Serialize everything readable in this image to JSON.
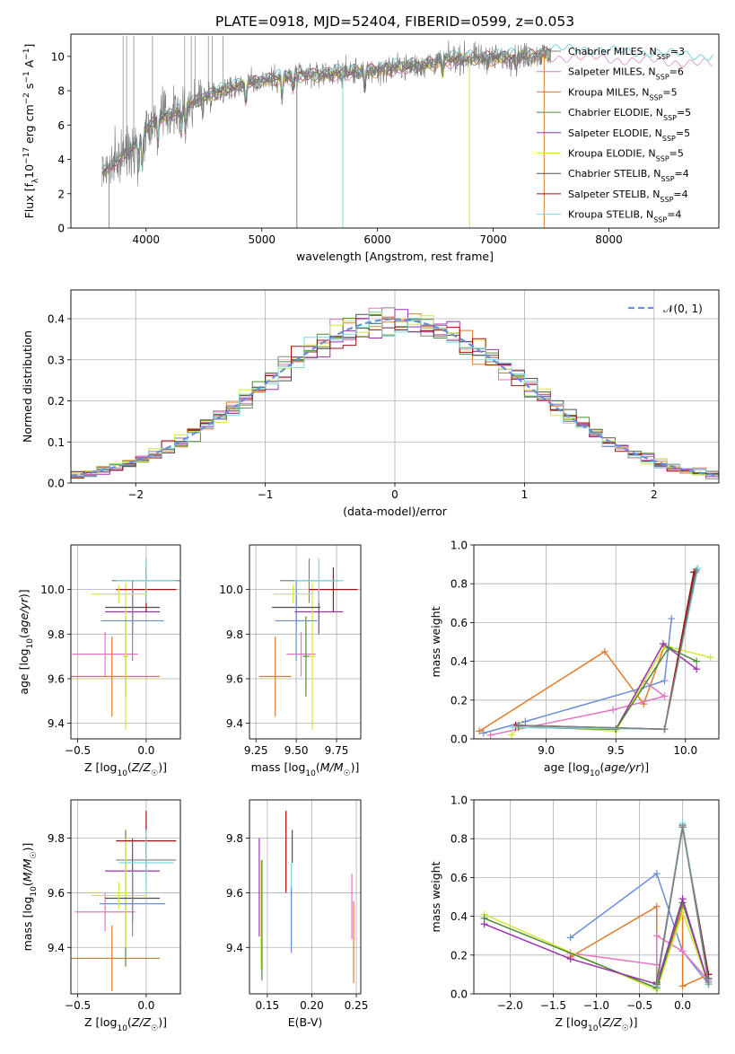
{
  "figure": {
    "title": "PLATE=0918, MJD=52404, FIBERID=0599, z=0.053"
  },
  "colors": {
    "Chabrier MILES": "#808080",
    "Salpeter MILES": "#e377c2",
    "Kroupa MILES": "#e07b2a",
    "Chabrier ELODIE": "#4f8a3c",
    "Salpeter ELODIE": "#9b30b0",
    "Kroupa ELODIE": "#d4e836",
    "Chabrier STELIB": "#505050",
    "Salpeter STELIB": "#a01010",
    "Kroupa STELIB": "#7fd7df",
    "normal_line": "#6a8fd8",
    "blue_series": "#6a8fd8"
  },
  "chart_data": [
    {
      "id": "spectrum",
      "type": "line",
      "xlabel": "wavelength [Angstrom, rest frame]",
      "ylabel": "Flux [f_λ10^-17 erg cm^-2 s^-1 A^-1]",
      "xlim": [
        3350,
        8950
      ],
      "ylim": [
        0,
        11.3
      ],
      "xticks": [
        4000,
        5000,
        6000,
        7000,
        8000
      ],
      "yticks": [
        0,
        2,
        4,
        6,
        8,
        10
      ],
      "legend_position": "right",
      "legend": [
        {
          "name": "Chabrier MILES",
          "nssp": "3"
        },
        {
          "name": "Salpeter MILES",
          "nssp": "6"
        },
        {
          "name": "Kroupa MILES",
          "nssp": "5"
        },
        {
          "name": "Chabrier ELODIE",
          "nssp": "5"
        },
        {
          "name": "Salpeter ELODIE",
          "nssp": "5"
        },
        {
          "name": "Kroupa ELODIE",
          "nssp": "5"
        },
        {
          "name": "Chabrier STELIB",
          "nssp": "4"
        },
        {
          "name": "Salpeter STELIB",
          "nssp": "4"
        },
        {
          "name": "Kroupa STELIB",
          "nssp": "4"
        }
      ],
      "continuum": {
        "x": [
          3620,
          3700,
          3800,
          3900,
          4000,
          4100,
          4200,
          4300,
          4400,
          4500,
          4600,
          4800,
          5000,
          5200,
          5400,
          5600,
          5800,
          6000,
          6200,
          6400,
          6600,
          6800,
          7000,
          7200,
          7400,
          7600,
          7800,
          8000,
          8200,
          8400,
          8600,
          8800
        ],
        "y": [
          3.3,
          3.6,
          4.2,
          4.9,
          5.8,
          6.3,
          6.6,
          6.9,
          7.3,
          7.6,
          7.9,
          8.3,
          8.6,
          8.8,
          8.9,
          9.0,
          9.1,
          9.2,
          9.4,
          9.5,
          9.8,
          9.9,
          9.9,
          10.0,
          10.1,
          10.2,
          10.2,
          10.1,
          10.0,
          10.0,
          9.9,
          9.8
        ]
      },
      "data_range": [
        3620,
        7500
      ],
      "model_range": [
        3620,
        8900
      ]
    },
    {
      "id": "residuals",
      "type": "line",
      "xlabel": "(data-model)/error",
      "ylabel": "Normed distribution",
      "xlim": [
        -2.5,
        2.5
      ],
      "ylim": [
        0,
        0.47
      ],
      "xticks": [
        -2,
        -1,
        0,
        1,
        2
      ],
      "yticks": [
        0.0,
        0.1,
        0.2,
        0.3,
        0.4
      ],
      "grid": true,
      "legend_position": "top-right",
      "legend": [
        {
          "name": "𝒩(0, 1)"
        }
      ],
      "bin_width": 0.1,
      "x_start": -2.5
    },
    {
      "id": "age-vs-Z",
      "type": "scatter",
      "xlabel": "Z [log10(Z/Z☉)]",
      "ylabel": "age  [log10(age/yr)]",
      "xlim": [
        -0.55,
        0.25
      ],
      "ylim": [
        9.33,
        10.2
      ],
      "xticks": [
        -0.5,
        0.0
      ],
      "yticks": [
        9.4,
        9.6,
        9.8,
        10.0
      ],
      "grid": true,
      "points": [
        {
          "model": "Chabrier MILES",
          "x": 0.0,
          "y": 10.04,
          "xerr": 0.25,
          "yerr": 0.1
        },
        {
          "model": "Salpeter MILES",
          "x": -0.3,
          "y": 9.71,
          "xerr": 0.24,
          "yerr": 0.1
        },
        {
          "model": "Kroupa MILES",
          "x": -0.25,
          "y": 9.61,
          "xerr": 0.35,
          "yerr": 0.18
        },
        {
          "model": "Chabrier ELODIE",
          "x": -0.15,
          "y": 9.7,
          "xerr": 0.02,
          "yerr": 0.18
        },
        {
          "model": "Salpeter ELODIE",
          "x": -0.1,
          "y": 9.9,
          "xerr": 0.2,
          "yerr": 0.1
        },
        {
          "model": "Kroupa ELODIE",
          "x": -0.15,
          "y": 9.7,
          "xerr": 0.02,
          "yerr": 0.33
        },
        {
          "model": "Chabrier STELIB",
          "x": -0.1,
          "y": 9.92,
          "xerr": 0.2,
          "yerr": 0.08
        },
        {
          "model": "Salpeter STELIB",
          "x": 0.0,
          "y": 10.0,
          "xerr": 0.22,
          "yerr": 0.1
        },
        {
          "model": "Kroupa STELIB",
          "x": 0.0,
          "y": 10.04,
          "xerr": 0.22,
          "yerr": 0.1
        },
        {
          "model": "blue",
          "x": -0.1,
          "y": 9.86,
          "xerr": 0.23,
          "yerr": 0.18
        },
        {
          "model": "Kroupa ELODIE",
          "x": -0.2,
          "y": 9.98,
          "xerr": 0.2,
          "yerr": 0.04
        }
      ]
    },
    {
      "id": "age-vs-mass",
      "type": "scatter",
      "xlabel": "mass [log10(M/M☉)]",
      "ylabel": "",
      "xlim": [
        9.21,
        9.9
      ],
      "ylim": [
        9.33,
        10.2
      ],
      "xticks": [
        9.25,
        9.5,
        9.75
      ],
      "yticks": [
        9.4,
        9.6,
        9.8,
        10.0
      ],
      "grid": true,
      "points": [
        {
          "model": "Chabrier MILES",
          "x": 9.58,
          "y": 10.04,
          "xerr": 0.18,
          "yerr": 0.1
        },
        {
          "model": "Salpeter MILES",
          "x": 9.53,
          "y": 9.71,
          "xerr": 0.09,
          "yerr": 0.1
        },
        {
          "model": "Kroupa MILES",
          "x": 9.37,
          "y": 9.61,
          "xerr": 0.1,
          "yerr": 0.18
        },
        {
          "model": "Chabrier ELODIE",
          "x": 9.56,
          "y": 9.7,
          "xerr": 0.02,
          "yerr": 0.18
        },
        {
          "model": "Salpeter ELODIE",
          "x": 9.64,
          "y": 9.9,
          "xerr": 0.15,
          "yerr": 0.1
        },
        {
          "model": "Kroupa ELODIE",
          "x": 9.6,
          "y": 9.7,
          "xerr": 0.02,
          "yerr": 0.33
        },
        {
          "model": "Chabrier STELIB",
          "x": 9.5,
          "y": 9.92,
          "xerr": 0.15,
          "yerr": 0.08
        },
        {
          "model": "Salpeter STELIB",
          "x": 9.73,
          "y": 10.0,
          "xerr": 0.15,
          "yerr": 0.1
        },
        {
          "model": "Kroupa STELIB",
          "x": 9.64,
          "y": 10.04,
          "xerr": 0.15,
          "yerr": 0.1
        },
        {
          "model": "blue",
          "x": 9.5,
          "y": 9.86,
          "xerr": 0.13,
          "yerr": 0.18
        },
        {
          "model": "Kroupa ELODIE",
          "x": 9.48,
          "y": 9.98,
          "xerr": 0.12,
          "yerr": 0.04
        }
      ]
    },
    {
      "id": "weight-vs-age",
      "type": "line",
      "xlabel": "age  [log10(age/yr)]",
      "ylabel": "mass weight",
      "xlim": [
        8.48,
        10.24
      ],
      "ylim": [
        0,
        1.0
      ],
      "xticks": [
        9.0,
        9.5,
        10.0
      ],
      "yticks": [
        0.0,
        0.2,
        0.4,
        0.6,
        0.8,
        1.0
      ],
      "grid": true,
      "series": [
        {
          "model": "Kroupa MILES",
          "x": [
            8.52,
            9.42,
            9.7,
            9.85
          ],
          "y": [
            0.04,
            0.45,
            0.18,
            0.48
          ]
        },
        {
          "model": "Salpeter MILES",
          "x": [
            8.6,
            9.48,
            9.85,
            9.7
          ],
          "y": [
            0.02,
            0.15,
            0.22,
            0.3
          ]
        },
        {
          "model": "blue",
          "x": [
            8.55,
            8.85,
            9.68,
            9.85,
            9.9
          ],
          "y": [
            0.03,
            0.09,
            0.26,
            0.3,
            0.62
          ]
        },
        {
          "model": "Kroupa ELODIE",
          "x": [
            8.75,
            8.82,
            9.5,
            9.85,
            10.18
          ],
          "y": [
            0.02,
            0.07,
            0.04,
            0.48,
            0.42
          ]
        },
        {
          "model": "Salpeter ELODIE",
          "x": [
            8.78,
            9.5,
            9.84,
            10.08
          ],
          "y": [
            0.06,
            0.05,
            0.49,
            0.36
          ]
        },
        {
          "model": "Chabrier ELODIE",
          "x": [
            8.8,
            9.5,
            9.88,
            10.08
          ],
          "y": [
            0.06,
            0.05,
            0.47,
            0.4
          ]
        },
        {
          "model": "Chabrier STELIB",
          "x": [
            8.78,
            9.85,
            10.07
          ],
          "y": [
            0.07,
            0.05,
            0.86
          ]
        },
        {
          "model": "Salpeter STELIB",
          "x": [
            8.78,
            9.85,
            10.06
          ],
          "y": [
            0.07,
            0.05,
            0.86
          ]
        },
        {
          "model": "Kroupa STELIB",
          "x": [
            8.76,
            9.85,
            10.09
          ],
          "y": [
            0.06,
            0.05,
            0.88
          ]
        },
        {
          "model": "Chabrier MILES",
          "x": [
            8.8,
            9.85,
            10.08
          ],
          "y": [
            0.07,
            0.05,
            0.87
          ]
        }
      ]
    },
    {
      "id": "mass-vs-Z",
      "type": "scatter",
      "xlabel": "Z [log10(Z/Z☉)]",
      "ylabel": "mass [log10(M/M☉)]",
      "xlim": [
        -0.55,
        0.25
      ],
      "ylim": [
        9.23,
        9.94
      ],
      "xticks": [
        -0.5,
        0.0
      ],
      "yticks": [
        9.4,
        9.6,
        9.8
      ],
      "grid": true,
      "points": [
        {
          "model": "Chabrier MILES",
          "x": 0.0,
          "y": 9.72,
          "xerr": 0.22,
          "yerr": 0.08
        },
        {
          "model": "Salpeter MILES",
          "x": -0.3,
          "y": 9.53,
          "xerr": 0.22,
          "yerr": 0.07
        },
        {
          "model": "Kroupa MILES",
          "x": -0.25,
          "y": 9.36,
          "xerr": 0.35,
          "yerr": 0.12
        },
        {
          "model": "Chabrier ELODIE",
          "x": -0.15,
          "y": 9.58,
          "xerr": 0.02,
          "yerr": 0.25
        },
        {
          "model": "Salpeter ELODIE",
          "x": -0.1,
          "y": 9.68,
          "xerr": 0.2,
          "yerr": 0.12
        },
        {
          "model": "Kroupa ELODIE",
          "x": -0.15,
          "y": 9.6,
          "xerr": 0.02,
          "yerr": 0.2
        },
        {
          "model": "Chabrier STELIB",
          "x": -0.1,
          "y": 9.58,
          "xerr": 0.2,
          "yerr": 0.09
        },
        {
          "model": "Salpeter STELIB",
          "x": 0.0,
          "y": 9.79,
          "xerr": 0.22,
          "yerr": 0.11
        },
        {
          "model": "Kroupa STELIB",
          "x": 0.0,
          "y": 9.71,
          "xerr": 0.2,
          "yerr": 0.12
        },
        {
          "model": "blue",
          "x": -0.1,
          "y": 9.56,
          "xerr": 0.24,
          "yerr": 0.12
        },
        {
          "model": "Kroupa ELODIE",
          "x": -0.2,
          "y": 9.59,
          "xerr": 0.2,
          "yerr": 0.05
        }
      ]
    },
    {
      "id": "mass-vs-EBV",
      "type": "scatter",
      "xlabel": "E(B-V)",
      "ylabel": "",
      "xlim": [
        0.13,
        0.255
      ],
      "ylim": [
        9.23,
        9.94
      ],
      "xticks": [
        0.15,
        0.2,
        0.25
      ],
      "yticks": [
        9.4,
        9.6,
        9.8
      ],
      "grid": true,
      "points": [
        {
          "model": "Salpeter ELODIE",
          "x": 0.141,
          "y": 9.62,
          "yerr": 0.18
        },
        {
          "model": "Kroupa ELODIE",
          "x": 0.143,
          "y": 9.52,
          "yerr": 0.2
        },
        {
          "model": "Chabrier ELODIE",
          "x": 0.144,
          "y": 9.5,
          "yerr": 0.22
        },
        {
          "model": "Salpeter STELIB",
          "x": 0.171,
          "y": 9.75,
          "yerr": 0.15
        },
        {
          "model": "Kroupa STELIB",
          "x": 0.177,
          "y": 9.56,
          "yerr": 0.15
        },
        {
          "model": "blue",
          "x": 0.177,
          "y": 9.5,
          "yerr": 0.12
        },
        {
          "model": "Chabrier STELIB",
          "x": 0.178,
          "y": 9.77,
          "yerr": 0.06
        },
        {
          "model": "Salpeter MILES",
          "x": 0.245,
          "y": 9.55,
          "yerr": 0.12
        },
        {
          "model": "Kroupa MILES",
          "x": 0.247,
          "y": 9.42,
          "yerr": 0.15
        }
      ]
    },
    {
      "id": "weight-vs-Z",
      "type": "line",
      "xlabel": "Z [log10(Z/Z☉)]",
      "ylabel": "mass weight",
      "xlim": [
        -2.42,
        0.42
      ],
      "ylim": [
        0,
        1.0
      ],
      "xticks": [
        -2.0,
        -1.5,
        -1.0,
        -0.5,
        0.0
      ],
      "yticks": [
        0.0,
        0.2,
        0.4,
        0.6,
        0.8,
        1.0
      ],
      "grid": true,
      "series": [
        {
          "model": "blue",
          "x": [
            -1.3,
            -0.3,
            0.0,
            0.3
          ],
          "y": [
            0.29,
            0.62,
            0.22,
            0.05
          ]
        },
        {
          "model": "Kroupa MILES",
          "x": [
            -1.3,
            -0.3,
            -0.3,
            0.0,
            0.0,
            0.3
          ],
          "y": [
            0.19,
            0.45,
            0.04,
            0.44,
            0.04,
            0.1
          ]
        },
        {
          "model": "Salpeter MILES",
          "x": [
            -1.3,
            -0.3,
            -0.3,
            0.0,
            0.3
          ],
          "y": [
            0.21,
            0.15,
            0.3,
            0.22,
            0.07
          ]
        },
        {
          "model": "Kroupa ELODIE",
          "x": [
            -2.3,
            -0.3,
            0.0,
            0.3
          ],
          "y": [
            0.41,
            0.02,
            0.42,
            0.05
          ]
        },
        {
          "model": "Chabrier ELODIE",
          "x": [
            -2.3,
            -0.3,
            0.0,
            0.3
          ],
          "y": [
            0.39,
            0.03,
            0.47,
            0.05
          ]
        },
        {
          "model": "Salpeter ELODIE",
          "x": [
            -2.3,
            -1.3,
            -0.3,
            0.0,
            0.3
          ],
          "y": [
            0.36,
            0.18,
            0.05,
            0.49,
            0.05
          ]
        },
        {
          "model": "Salpeter STELIB",
          "x": [
            -0.3,
            0.0,
            0.3
          ],
          "y": [
            0.05,
            0.86,
            0.1
          ]
        },
        {
          "model": "Chabrier STELIB",
          "x": [
            -0.3,
            0.0,
            0.3
          ],
          "y": [
            0.06,
            0.87,
            0.08
          ]
        },
        {
          "model": "Kroupa STELIB",
          "x": [
            -0.3,
            0.0,
            0.3
          ],
          "y": [
            0.04,
            0.88,
            0.05
          ]
        },
        {
          "model": "Chabrier MILES",
          "x": [
            -0.3,
            0.0,
            0.3
          ],
          "y": [
            0.05,
            0.86,
            0.06
          ]
        }
      ]
    }
  ]
}
